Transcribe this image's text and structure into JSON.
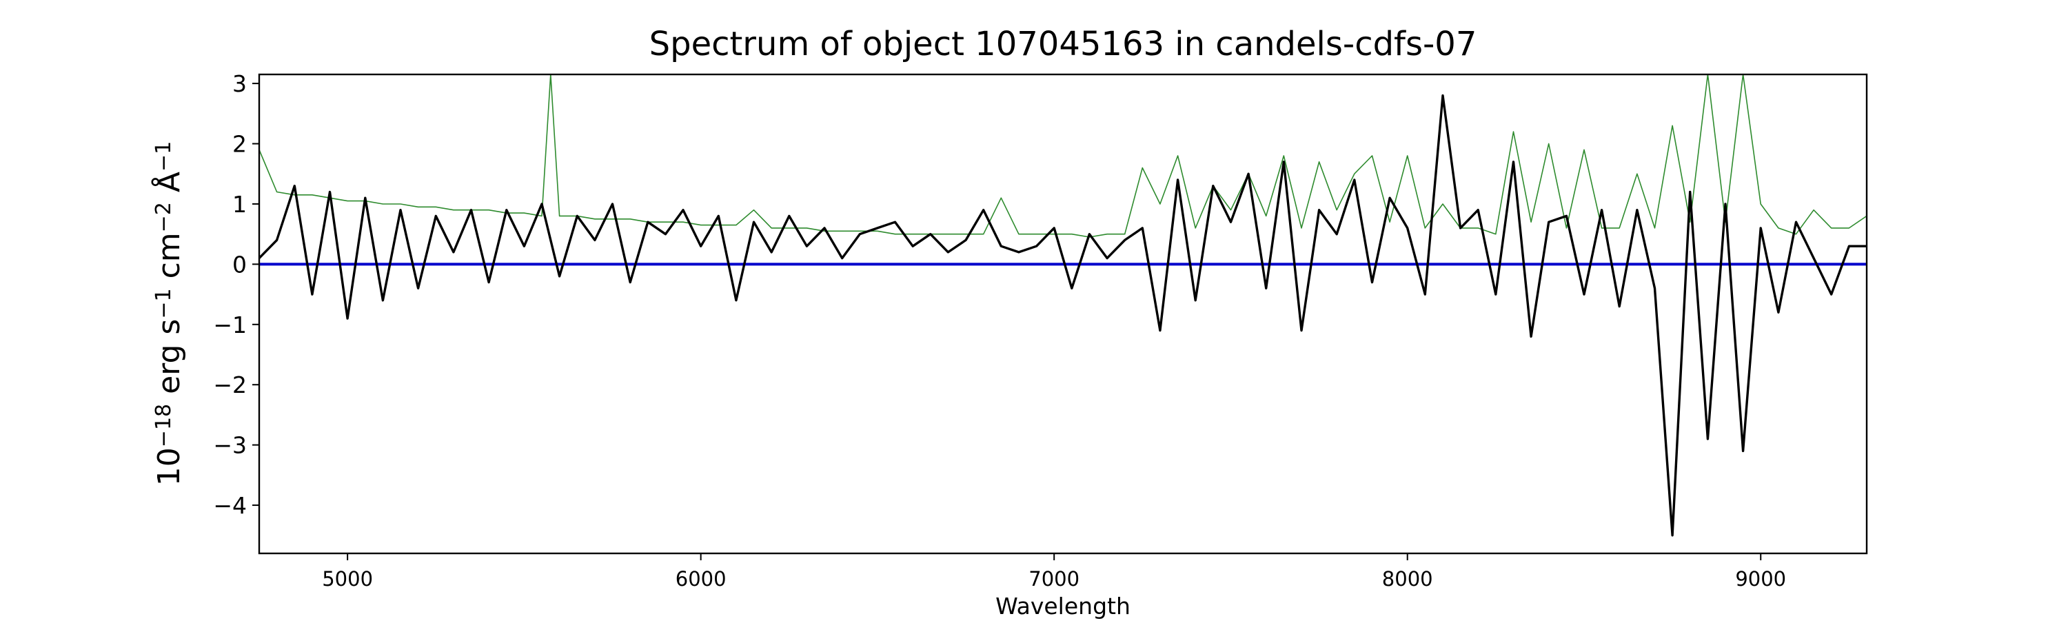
{
  "chart_data": {
    "type": "line",
    "title": "Spectrum of object 107045163 in candels-cdfs-07",
    "xlabel": "Wavelength",
    "ylabel_parts": [
      "10",
      "−18",
      " erg s",
      "−1",
      " cm",
      "−2",
      " Å",
      "−1"
    ],
    "xlim": [
      4750,
      9300
    ],
    "ylim": [
      -4.8,
      3.15
    ],
    "x_ticks": [
      5000,
      6000,
      7000,
      8000,
      9000
    ],
    "x_tick_labels": [
      "5000",
      "6000",
      "7000",
      "8000",
      "9000"
    ],
    "y_ticks": [
      -4,
      -3,
      -2,
      -1,
      0,
      1,
      2,
      3
    ],
    "y_tick_labels": [
      "−4",
      "−3",
      "−2",
      "−1",
      "0",
      "1",
      "2",
      "3"
    ],
    "grid": false,
    "legend": "none",
    "colors": {
      "flux": "#000000",
      "noise": "#2e8b2e",
      "zero": "#0000cc"
    },
    "series": [
      {
        "role": "flux",
        "x": [
          4750,
          4800,
          4850,
          4900,
          4950,
          5000,
          5050,
          5100,
          5150,
          5200,
          5250,
          5300,
          5350,
          5400,
          5450,
          5500,
          5550,
          5600,
          5650,
          5700,
          5750,
          5800,
          5850,
          5900,
          5950,
          6000,
          6050,
          6100,
          6150,
          6200,
          6250,
          6300,
          6350,
          6400,
          6450,
          6500,
          6550,
          6600,
          6650,
          6700,
          6750,
          6800,
          6850,
          6900,
          6950,
          7000,
          7050,
          7100,
          7150,
          7200,
          7250,
          7300,
          7350,
          7400,
          7450,
          7500,
          7550,
          7600,
          7650,
          7700,
          7750,
          7800,
          7850,
          7900,
          7950,
          8000,
          8050,
          8100,
          8150,
          8200,
          8250,
          8300,
          8350,
          8400,
          8450,
          8500,
          8550,
          8600,
          8650,
          8700,
          8750,
          8800,
          8850,
          8900,
          8950,
          9000,
          9050,
          9100,
          9150,
          9200,
          9250,
          9300
        ],
        "y": [
          0.1,
          0.4,
          1.3,
          -0.5,
          1.2,
          -0.9,
          1.1,
          -0.6,
          0.9,
          -0.4,
          0.8,
          0.2,
          0.9,
          -0.3,
          0.9,
          0.3,
          1.0,
          -0.2,
          0.8,
          0.4,
          1.0,
          -0.3,
          0.7,
          0.5,
          0.9,
          0.3,
          0.8,
          -0.6,
          0.7,
          0.2,
          0.8,
          0.3,
          0.6,
          0.1,
          0.5,
          0.6,
          0.7,
          0.3,
          0.5,
          0.2,
          0.4,
          0.9,
          0.3,
          0.2,
          0.3,
          0.6,
          -0.4,
          0.5,
          0.1,
          0.4,
          0.6,
          -1.1,
          1.4,
          -0.6,
          1.3,
          0.7,
          1.5,
          -0.4,
          1.7,
          -1.1,
          0.9,
          0.5,
          1.4,
          -0.3,
          1.1,
          0.6,
          -0.5,
          2.8,
          0.6,
          0.9,
          -0.5,
          1.7,
          -1.2,
          0.7,
          0.8,
          -0.5,
          0.9,
          -0.7,
          0.9,
          -0.4,
          -4.5,
          1.2,
          -2.9,
          1.0,
          -3.1,
          0.6,
          -0.8,
          0.7,
          0.1,
          -0.5,
          0.3,
          0.3
        ]
      },
      {
        "role": "noise",
        "x": [
          4750,
          4800,
          4850,
          4900,
          4950,
          5000,
          5050,
          5100,
          5150,
          5200,
          5250,
          5300,
          5350,
          5400,
          5450,
          5500,
          5550,
          5575,
          5600,
          5650,
          5700,
          5750,
          5800,
          5850,
          5900,
          5950,
          6000,
          6050,
          6100,
          6150,
          6200,
          6250,
          6300,
          6350,
          6400,
          6450,
          6500,
          6550,
          6600,
          6650,
          6700,
          6750,
          6800,
          6850,
          6900,
          6950,
          7000,
          7050,
          7100,
          7150,
          7200,
          7250,
          7300,
          7350,
          7400,
          7450,
          7500,
          7550,
          7600,
          7650,
          7700,
          7750,
          7800,
          7850,
          7900,
          7950,
          8000,
          8050,
          8100,
          8150,
          8200,
          8250,
          8300,
          8350,
          8400,
          8450,
          8500,
          8550,
          8600,
          8650,
          8700,
          8750,
          8800,
          8850,
          8900,
          8950,
          9000,
          9050,
          9100,
          9150,
          9200,
          9250,
          9300
        ],
        "y": [
          1.9,
          1.2,
          1.15,
          1.15,
          1.1,
          1.05,
          1.05,
          1.0,
          1.0,
          0.95,
          0.95,
          0.9,
          0.9,
          0.9,
          0.85,
          0.85,
          0.8,
          3.15,
          0.8,
          0.8,
          0.75,
          0.75,
          0.75,
          0.7,
          0.7,
          0.7,
          0.65,
          0.65,
          0.65,
          0.9,
          0.6,
          0.6,
          0.6,
          0.55,
          0.55,
          0.55,
          0.55,
          0.5,
          0.5,
          0.5,
          0.5,
          0.5,
          0.5,
          1.1,
          0.5,
          0.5,
          0.5,
          0.5,
          0.45,
          0.5,
          0.5,
          1.6,
          1.0,
          1.8,
          0.6,
          1.3,
          0.9,
          1.5,
          0.8,
          1.8,
          0.6,
          1.7,
          0.9,
          1.5,
          1.8,
          0.7,
          1.8,
          0.6,
          1.0,
          0.6,
          0.6,
          0.5,
          2.2,
          0.7,
          2.0,
          0.6,
          1.9,
          0.6,
          0.6,
          1.5,
          0.6,
          2.3,
          0.7,
          3.15,
          0.7,
          3.15,
          1.0,
          0.6,
          0.5,
          0.9,
          0.6,
          0.6,
          0.8
        ]
      },
      {
        "role": "zero",
        "x": [
          4750,
          9300
        ],
        "y": [
          0,
          0
        ]
      }
    ]
  }
}
